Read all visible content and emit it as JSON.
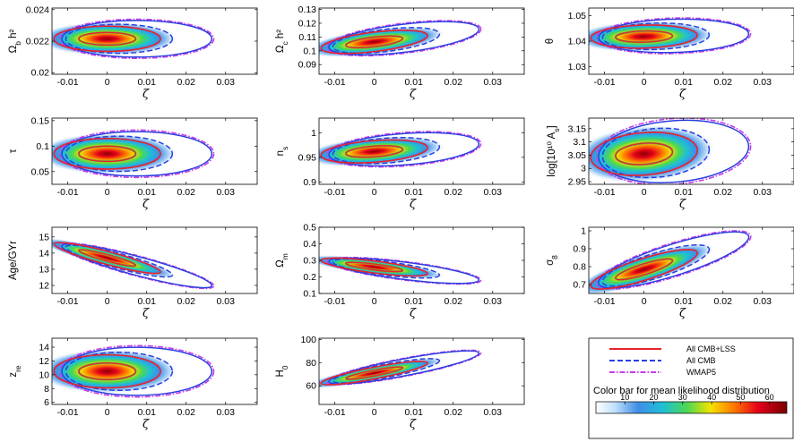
{
  "chart_data": {
    "type": "contour",
    "xlabel": "ζ",
    "x_ticks": [
      -0.01,
      0,
      0.01,
      0.02,
      0.03
    ],
    "x_tick_labels": [
      "-0.01",
      "0",
      "0.01",
      "0.02",
      "0.03"
    ],
    "xlim": [
      -0.014,
      0.038
    ],
    "colors": {
      "all_cmb_lss": "#e8222a",
      "all_cmb": "#2b3fe0",
      "wmap5": "#c83ce8",
      "inner_contour": "#6bb24a"
    },
    "panels": [
      {
        "id": "omega-b",
        "ylabel": "Ω_b h²",
        "ylim": [
          0.0199,
          0.0241
        ],
        "y_ticks": [
          0.02,
          0.022,
          0.024
        ],
        "y_tick_labels": [
          "0.02",
          "0.022",
          "0.024"
        ],
        "center": 0.02215,
        "slope": 0,
        "lss_68": 0.0004,
        "lss_95": 0.0008
      },
      {
        "id": "omega-c",
        "ylabel": "Ω_c h²",
        "ylim": [
          0.083,
          0.131
        ],
        "y_ticks": [
          0.09,
          0.1,
          0.11,
          0.12,
          0.13
        ],
        "y_tick_labels": [
          "0.09",
          "0.1",
          "0.11",
          "0.12",
          "0.13"
        ],
        "center": 0.1065,
        "slope": 0.35,
        "lss_68": 0.0035,
        "lss_95": 0.007
      },
      {
        "id": "theta",
        "ylabel": "θ",
        "ylim": [
          1.027,
          1.053
        ],
        "y_ticks": [
          1.03,
          1.04,
          1.05
        ],
        "y_tick_labels": [
          "1.03",
          "1.04",
          "1.05"
        ],
        "center": 1.0418,
        "slope": 0.04,
        "lss_68": 0.0022,
        "lss_95": 0.0045
      },
      {
        "id": "tau",
        "ylabel": "τ",
        "ylim": [
          0.025,
          0.155
        ],
        "y_ticks": [
          0.05,
          0.1,
          0.15
        ],
        "y_tick_labels": [
          "0.05",
          "0.1",
          "0.15"
        ],
        "center": 0.085,
        "slope": 0,
        "lss_68": 0.015,
        "lss_95": 0.03
      },
      {
        "id": "n-s",
        "ylabel": "n_s",
        "ylim": [
          0.895,
          1.03
        ],
        "y_ticks": [
          0.9,
          0.95,
          1.0
        ],
        "y_tick_labels": [
          "0.9",
          "0.95",
          "1"
        ],
        "center": 0.962,
        "slope": 0.6,
        "lss_68": 0.011,
        "lss_95": 0.022
      },
      {
        "id": "log-as",
        "ylabel": "log[10¹⁰ A_s]",
        "ylim": [
          2.94,
          3.19
        ],
        "y_ticks": [
          2.95,
          3.0,
          3.05,
          3.1,
          3.15
        ],
        "y_tick_labels": [
          "2.95",
          "3",
          "3.05",
          "3.1",
          "3.15"
        ],
        "center": 3.055,
        "slope": 1.2,
        "lss_68": 0.04,
        "lss_95": 0.08
      },
      {
        "id": "age",
        "ylabel": "Age/GYr",
        "ylim": [
          11.5,
          15.6
        ],
        "y_ticks": [
          12,
          13,
          14,
          15
        ],
        "y_tick_labels": [
          "12",
          "13",
          "14",
          "15"
        ],
        "center": 13.7,
        "slope": -65,
        "lss_68": 0.2,
        "lss_95": 0.4
      },
      {
        "id": "omega-m",
        "ylabel": "Ω_m",
        "ylim": [
          0.1,
          0.5
        ],
        "y_ticks": [
          0.1,
          0.2,
          0.3,
          0.4,
          0.5
        ],
        "y_tick_labels": [
          "0.1",
          "0.2",
          "0.3",
          "0.4",
          "0.5"
        ],
        "center": 0.26,
        "slope": -3,
        "lss_68": 0.018,
        "lss_95": 0.036
      },
      {
        "id": "sigma-8",
        "ylabel": "σ_8",
        "ylim": [
          0.65,
          1.02
        ],
        "y_ticks": [
          0.7,
          0.8,
          0.9,
          1.0
        ],
        "y_tick_labels": [
          "0.7",
          "0.8",
          "0.9",
          "1"
        ],
        "center": 0.785,
        "slope": 7,
        "lss_68": 0.03,
        "lss_95": 0.06
      },
      {
        "id": "z-re",
        "ylabel": "z_re",
        "ylim": [
          5.7,
          15.3
        ],
        "y_ticks": [
          6,
          8,
          10,
          12,
          14
        ],
        "y_tick_labels": [
          "6",
          "8",
          "10",
          "12",
          "14"
        ],
        "center": 10.5,
        "slope": 0,
        "lss_68": 1.2,
        "lss_95": 2.4
      },
      {
        "id": "h-0",
        "ylabel": "H_0",
        "ylim": [
          44,
          101
        ],
        "y_ticks": [
          60,
          80,
          100
        ],
        "y_tick_labels": [
          "60",
          "80",
          "100"
        ],
        "center": 71,
        "slope": 650,
        "lss_68": 2.5,
        "lss_95": 5
      }
    ],
    "legend": [
      {
        "label": "All CMB+LSS",
        "style": "solid",
        "color": "#e8222a"
      },
      {
        "label": "All CMB",
        "style": "dashed",
        "color": "#2b3fe0"
      },
      {
        "label": "WMAP5",
        "style": "dashdot",
        "color": "#c83ce8"
      }
    ],
    "colorbar": {
      "title": "Color bar for mean likelihood distribution",
      "ticks": [
        10,
        20,
        30,
        40,
        50,
        60
      ],
      "tick_labels": [
        "10",
        "20",
        "30",
        "40",
        "50",
        "60"
      ],
      "range": [
        0,
        66
      ]
    }
  }
}
